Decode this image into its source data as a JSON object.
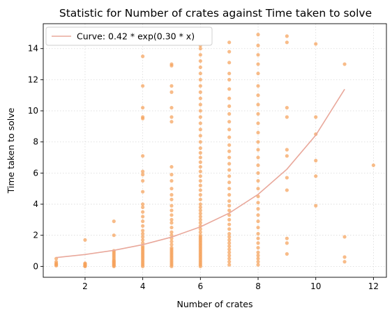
{
  "chart_data": {
    "type": "scatter",
    "title": "Statistic for Number of crates against Time taken to solve",
    "xlabel": "Number of crates",
    "ylabel": "Time taken to solve",
    "xlim": [
      0.55,
      12.45
    ],
    "ylim": [
      -0.7,
      15.6
    ],
    "xticks": [
      2,
      4,
      6,
      8,
      10,
      12
    ],
    "yticks": [
      0,
      2,
      4,
      6,
      8,
      10,
      12,
      14
    ],
    "grid": true,
    "legend_position": "top-left",
    "colors": {
      "points": "#f5a25c",
      "curve": "#e9a89b",
      "grid": "#d9d9d9"
    },
    "series": [
      {
        "name": "points",
        "kind": "scatter",
        "points": [
          [
            1,
            0.05
          ],
          [
            1,
            0.1
          ],
          [
            1,
            0.15
          ],
          [
            1,
            0.2
          ],
          [
            1,
            0.3
          ],
          [
            1,
            0.5
          ],
          [
            2,
            0.0
          ],
          [
            2,
            0.03
          ],
          [
            2,
            0.06
          ],
          [
            2,
            0.1
          ],
          [
            2,
            0.13
          ],
          [
            2,
            0.17
          ],
          [
            2,
            0.2
          ],
          [
            2,
            1.7
          ],
          [
            3,
            0.0
          ],
          [
            3,
            0.05
          ],
          [
            3,
            0.1
          ],
          [
            3,
            0.15
          ],
          [
            3,
            0.2
          ],
          [
            3,
            0.25
          ],
          [
            3,
            0.3
          ],
          [
            3,
            0.35
          ],
          [
            3,
            0.4
          ],
          [
            3,
            0.5
          ],
          [
            3,
            0.6
          ],
          [
            3,
            0.7
          ],
          [
            3,
            0.8
          ],
          [
            3,
            0.9
          ],
          [
            3,
            1.0
          ],
          [
            3,
            2.0
          ],
          [
            3,
            2.9
          ],
          [
            4,
            0.0
          ],
          [
            4,
            0.1
          ],
          [
            4,
            0.2
          ],
          [
            4,
            0.3
          ],
          [
            4,
            0.4
          ],
          [
            4,
            0.5
          ],
          [
            4,
            0.6
          ],
          [
            4,
            0.7
          ],
          [
            4,
            0.8
          ],
          [
            4,
            0.9
          ],
          [
            4,
            1.0
          ],
          [
            4,
            1.1
          ],
          [
            4,
            1.2
          ],
          [
            4,
            1.3
          ],
          [
            4,
            1.5
          ],
          [
            4,
            1.7
          ],
          [
            4,
            1.9
          ],
          [
            4,
            2.1
          ],
          [
            4,
            2.3
          ],
          [
            4,
            2.6
          ],
          [
            4,
            2.9
          ],
          [
            4,
            3.2
          ],
          [
            4,
            3.5
          ],
          [
            4,
            3.8
          ],
          [
            4,
            4.0
          ],
          [
            4,
            4.8
          ],
          [
            4,
            5.5
          ],
          [
            4,
            5.9
          ],
          [
            4,
            6.1
          ],
          [
            4,
            7.1
          ],
          [
            4,
            9.5
          ],
          [
            4,
            9.6
          ],
          [
            4,
            10.2
          ],
          [
            4,
            11.6
          ],
          [
            4,
            13.5
          ],
          [
            5,
            0.0
          ],
          [
            5,
            0.1
          ],
          [
            5,
            0.2
          ],
          [
            5,
            0.3
          ],
          [
            5,
            0.4
          ],
          [
            5,
            0.5
          ],
          [
            5,
            0.6
          ],
          [
            5,
            0.7
          ],
          [
            5,
            0.8
          ],
          [
            5,
            0.9
          ],
          [
            5,
            1.0
          ],
          [
            5,
            1.1
          ],
          [
            5,
            1.2
          ],
          [
            5,
            1.4
          ],
          [
            5,
            1.6
          ],
          [
            5,
            1.8
          ],
          [
            5,
            2.0
          ],
          [
            5,
            2.2
          ],
          [
            5,
            2.5
          ],
          [
            5,
            2.8
          ],
          [
            5,
            3.0
          ],
          [
            5,
            3.3
          ],
          [
            5,
            3.6
          ],
          [
            5,
            3.9
          ],
          [
            5,
            4.3
          ],
          [
            5,
            4.6
          ],
          [
            5,
            5.0
          ],
          [
            5,
            5.5
          ],
          [
            5,
            5.9
          ],
          [
            5,
            6.4
          ],
          [
            5,
            9.3
          ],
          [
            5,
            9.6
          ],
          [
            5,
            10.2
          ],
          [
            5,
            11.2
          ],
          [
            5,
            11.6
          ],
          [
            5,
            12.9
          ],
          [
            5,
            13.0
          ],
          [
            6,
            0.0
          ],
          [
            6,
            0.1
          ],
          [
            6,
            0.2
          ],
          [
            6,
            0.3
          ],
          [
            6,
            0.4
          ],
          [
            6,
            0.5
          ],
          [
            6,
            0.6
          ],
          [
            6,
            0.7
          ],
          [
            6,
            0.8
          ],
          [
            6,
            0.9
          ],
          [
            6,
            1.0
          ],
          [
            6,
            1.1
          ],
          [
            6,
            1.2
          ],
          [
            6,
            1.3
          ],
          [
            6,
            1.4
          ],
          [
            6,
            1.5
          ],
          [
            6,
            1.6
          ],
          [
            6,
            1.7
          ],
          [
            6,
            1.8
          ],
          [
            6,
            1.9
          ],
          [
            6,
            2.0
          ],
          [
            6,
            2.2
          ],
          [
            6,
            2.4
          ],
          [
            6,
            2.6
          ],
          [
            6,
            2.8
          ],
          [
            6,
            3.0
          ],
          [
            6,
            3.2
          ],
          [
            6,
            3.4
          ],
          [
            6,
            3.6
          ],
          [
            6,
            3.8
          ],
          [
            6,
            4.0
          ],
          [
            6,
            4.3
          ],
          [
            6,
            4.6
          ],
          [
            6,
            4.9
          ],
          [
            6,
            5.2
          ],
          [
            6,
            5.5
          ],
          [
            6,
            5.8
          ],
          [
            6,
            6.1
          ],
          [
            6,
            6.4
          ],
          [
            6,
            6.7
          ],
          [
            6,
            7.0
          ],
          [
            6,
            7.3
          ],
          [
            6,
            7.6
          ],
          [
            6,
            8.0
          ],
          [
            6,
            8.4
          ],
          [
            6,
            8.8
          ],
          [
            6,
            9.2
          ],
          [
            6,
            9.6
          ],
          [
            6,
            10.0
          ],
          [
            6,
            10.4
          ],
          [
            6,
            10.8
          ],
          [
            6,
            11.2
          ],
          [
            6,
            11.6
          ],
          [
            6,
            12.0
          ],
          [
            6,
            12.4
          ],
          [
            6,
            12.8
          ],
          [
            6,
            13.2
          ],
          [
            6,
            13.6
          ],
          [
            6,
            14.0
          ],
          [
            6,
            14.2
          ],
          [
            7,
            0.1
          ],
          [
            7,
            0.3
          ],
          [
            7,
            0.5
          ],
          [
            7,
            0.7
          ],
          [
            7,
            0.9
          ],
          [
            7,
            1.1
          ],
          [
            7,
            1.3
          ],
          [
            7,
            1.5
          ],
          [
            7,
            1.7
          ],
          [
            7,
            1.9
          ],
          [
            7,
            2.1
          ],
          [
            7,
            2.4
          ],
          [
            7,
            2.7
          ],
          [
            7,
            3.0
          ],
          [
            7,
            3.3
          ],
          [
            7,
            3.6
          ],
          [
            7,
            3.9
          ],
          [
            7,
            4.2
          ],
          [
            7,
            4.6
          ],
          [
            7,
            5.0
          ],
          [
            7,
            5.4
          ],
          [
            7,
            5.8
          ],
          [
            7,
            6.2
          ],
          [
            7,
            6.6
          ],
          [
            7,
            7.0
          ],
          [
            7,
            7.4
          ],
          [
            7,
            7.8
          ],
          [
            7,
            8.3
          ],
          [
            7,
            8.8
          ],
          [
            7,
            9.3
          ],
          [
            7,
            9.8
          ],
          [
            7,
            10.3
          ],
          [
            7,
            10.8
          ],
          [
            7,
            11.4
          ],
          [
            7,
            12.0
          ],
          [
            7,
            12.4
          ],
          [
            7,
            13.1
          ],
          [
            7,
            13.8
          ],
          [
            7,
            14.4
          ],
          [
            8,
            0.1
          ],
          [
            8,
            0.3
          ],
          [
            8,
            0.5
          ],
          [
            8,
            0.7
          ],
          [
            8,
            0.9
          ],
          [
            8,
            1.2
          ],
          [
            8,
            1.5
          ],
          [
            8,
            1.8
          ],
          [
            8,
            2.1
          ],
          [
            8,
            2.5
          ],
          [
            8,
            2.9
          ],
          [
            8,
            3.3
          ],
          [
            8,
            3.7
          ],
          [
            8,
            4.1
          ],
          [
            8,
            4.5
          ],
          [
            8,
            5.0
          ],
          [
            8,
            5.5
          ],
          [
            8,
            6.0
          ],
          [
            8,
            6.5
          ],
          [
            8,
            7.0
          ],
          [
            8,
            7.5
          ],
          [
            8,
            8.0
          ],
          [
            8,
            8.6
          ],
          [
            8,
            9.2
          ],
          [
            8,
            9.8
          ],
          [
            8,
            10.4
          ],
          [
            8,
            11.0
          ],
          [
            8,
            11.6
          ],
          [
            8,
            12.4
          ],
          [
            8,
            13.0
          ],
          [
            8,
            13.6
          ],
          [
            8,
            14.2
          ],
          [
            8,
            14.9
          ],
          [
            9,
            0.8
          ],
          [
            9,
            1.5
          ],
          [
            9,
            1.8
          ],
          [
            9,
            4.9
          ],
          [
            9,
            5.7
          ],
          [
            9,
            7.1
          ],
          [
            9,
            7.5
          ],
          [
            9,
            9.6
          ],
          [
            9,
            10.2
          ],
          [
            9,
            14.4
          ],
          [
            9,
            14.8
          ],
          [
            10,
            3.9
          ],
          [
            10,
            5.8
          ],
          [
            10,
            6.8
          ],
          [
            10,
            8.5
          ],
          [
            10,
            9.6
          ],
          [
            10,
            14.3
          ],
          [
            11,
            0.3
          ],
          [
            11,
            0.6
          ],
          [
            11,
            1.9
          ],
          [
            11,
            13.0
          ],
          [
            12,
            6.5
          ]
        ]
      },
      {
        "name": "Curve: 0.42 * exp(0.30 * x)",
        "kind": "line",
        "x": [
          1,
          2,
          3,
          4,
          5,
          6,
          7,
          8,
          9,
          10,
          11
        ],
        "y": [
          0.567,
          0.765,
          1.033,
          1.394,
          1.882,
          2.54,
          3.429,
          4.629,
          6.248,
          8.434,
          11.385
        ]
      }
    ]
  }
}
